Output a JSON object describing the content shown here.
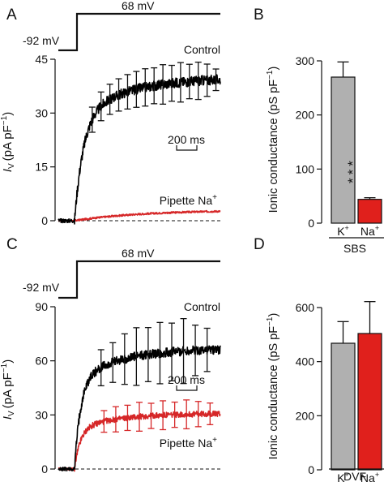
{
  "chart_data": [
    {
      "panel": "A",
      "type": "line",
      "ylabel_main": "I",
      "ylabel_sub": "V",
      "ylabel_rest": "(pA pF",
      "ylabel_sup": "−1",
      "ylabel_close": ")",
      "yticks": [
        "0",
        "15",
        "30",
        "45"
      ],
      "ylim": [
        0,
        45
      ],
      "time_ms": [
        0,
        1100
      ],
      "step_ms": 110,
      "protocol": {
        "hold_label": "-92 mV",
        "step_label": "68 mV"
      },
      "scale_bar": "200 ms",
      "zero_line": "dashed",
      "series": [
        {
          "name": "Control",
          "color": "#000000",
          "plateau": 40,
          "tau_ms": 60,
          "slow_tau_ms": 350,
          "noise": 1.4,
          "error_times_ms": [
            230,
            290,
            350,
            410,
            470,
            530,
            590,
            650,
            710,
            770,
            830,
            890,
            950,
            1010,
            1070
          ],
          "error_sd": [
            3.5,
            4.0,
            4.2,
            4.5,
            4.8,
            5.0,
            5.2,
            5.0,
            5.5,
            5.0,
            5.5,
            4.8,
            5.2,
            4.5,
            3.0
          ]
        },
        {
          "name": "Pipette Na",
          "name_sup": "+",
          "color": "#d62728",
          "plateau": 3,
          "tau_ms": 500,
          "slow_tau_ms": 400,
          "noise": 0.25
        }
      ]
    },
    {
      "panel": "B",
      "type": "bar",
      "ylabel": "Ionic conductance (pS pF",
      "ylabel_sup": "−1",
      "ylabel_close": ")",
      "yticks": [
        "0",
        "100",
        "200",
        "300"
      ],
      "ylim": [
        0,
        300
      ],
      "categories": [
        "K",
        "Na"
      ],
      "category_sup": [
        "+",
        "+"
      ],
      "values": [
        270,
        44
      ],
      "errors": [
        28,
        3
      ],
      "colors": [
        "#b0b0b0",
        "#e0201c"
      ],
      "group_label": "SBS",
      "significance": "***"
    },
    {
      "panel": "C",
      "type": "line",
      "ylabel_main": "I",
      "ylabel_sub": "V",
      "ylabel_rest": "(pA pF",
      "ylabel_sup": "−1",
      "ylabel_close": ")",
      "yticks": [
        "0",
        "30",
        "60",
        "90"
      ],
      "ylim": [
        0,
        90
      ],
      "time_ms": [
        0,
        1100
      ],
      "step_ms": 110,
      "protocol": {
        "hold_label": "-92 mV",
        "step_label": "68 mV"
      },
      "scale_bar": "200 ms",
      "zero_line": "dashed",
      "series": [
        {
          "name": "Control",
          "color": "#000000",
          "plateau": 67,
          "tau_ms": 40,
          "slow_tau_ms": 300,
          "noise": 2.6,
          "error_times_ms": [
            290,
            370,
            450,
            530,
            610,
            690,
            770,
            850,
            930,
            1010
          ],
          "error_sd": [
            10,
            11,
            14,
            16,
            15,
            17,
            16,
            18,
            14,
            12
          ]
        },
        {
          "name": "Pipette Na",
          "name_sup": "+",
          "color": "#d62728",
          "plateau": 31,
          "tau_ms": 40,
          "slow_tau_ms": 300,
          "noise": 1.6,
          "error_times_ms": [
            310,
            390,
            470,
            550,
            630,
            710,
            790,
            870,
            950,
            1030
          ],
          "error_sd": [
            6,
            7,
            7,
            8,
            7,
            8,
            7,
            8,
            7,
            6
          ]
        }
      ]
    },
    {
      "panel": "D",
      "type": "bar",
      "ylabel": "Ionic conductance (pS pF",
      "ylabel_sup": "−1",
      "ylabel_close": ")",
      "yticks": [
        "0",
        "200",
        "400",
        "600"
      ],
      "ylim": [
        0,
        600
      ],
      "categories": [
        "K",
        "Na"
      ],
      "category_sup": [
        "+",
        "+"
      ],
      "values": [
        468,
        504
      ],
      "errors": [
        80,
        118
      ],
      "colors": [
        "#b0b0b0",
        "#e0201c"
      ],
      "group_label": "DVF",
      "significance": ""
    }
  ]
}
